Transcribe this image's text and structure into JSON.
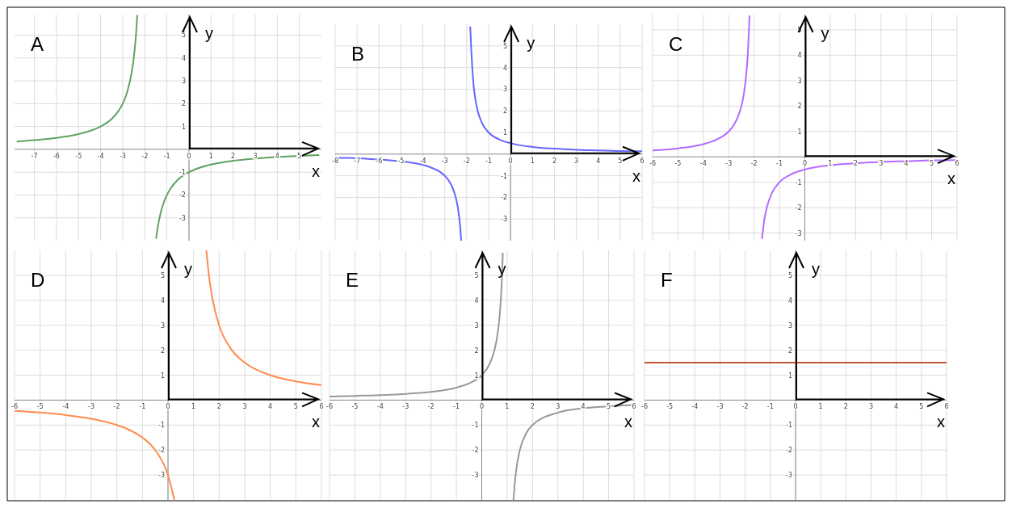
{
  "chart_data": [
    {
      "type": "line",
      "title": "A",
      "xlabel": "x",
      "ylabel": "y",
      "xlim": [
        -7.9,
        6
      ],
      "ylim": [
        -4,
        5.9
      ],
      "xticks": [
        -7,
        -6,
        -5,
        -4,
        -3,
        -2,
        -1,
        0,
        1,
        2,
        3,
        4,
        5
      ],
      "yticks": [
        -3,
        -2,
        -1,
        1,
        2,
        3,
        4,
        5
      ],
      "grid": true,
      "series": [
        {
          "color": "#5fa35f",
          "x": [
            -7.8,
            -7,
            -6,
            -5,
            -4.5,
            -4,
            -3.5,
            -3.2,
            -3,
            -2.8,
            -2.6,
            -2.5,
            -2.4,
            -2.34,
            -2,
            -1.49,
            -1.4,
            -1.3,
            -1.2,
            -1,
            -0.8,
            -0.5,
            0,
            0.5,
            1,
            2,
            3,
            4,
            5,
            5.9
          ],
          "values": [
            0.34,
            0.4,
            0.5,
            0.67,
            0.8,
            1,
            1.33,
            1.67,
            2,
            2.5,
            3.33,
            4,
            5,
            5.88,
            null,
            -3.92,
            -3.33,
            -2.86,
            -2.5,
            -2,
            -1.67,
            -1.33,
            -1,
            -0.8,
            -0.67,
            -0.5,
            -0.4,
            -0.33,
            -0.29,
            -0.25
          ]
        }
      ]
    },
    {
      "type": "line",
      "title": "B",
      "xlabel": "x",
      "ylabel": "y",
      "xlim": [
        -8,
        6
      ],
      "ylim": [
        -4,
        6
      ],
      "xticks": [
        -8,
        -7,
        -6,
        -5,
        -4,
        -3,
        -2,
        -1,
        0,
        1,
        2,
        3,
        4,
        5,
        6
      ],
      "yticks": [
        -3,
        -2,
        -1,
        1,
        2,
        3,
        4,
        5
      ],
      "grid": true,
      "series": [
        {
          "color": "#6666ff",
          "x": [
            -7.9,
            -7.5,
            -6.5,
            -5.5,
            -4.5,
            -3.8,
            -3,
            -2.7,
            -2.5,
            -2.4,
            -2.3,
            -2.25,
            -2,
            -1.84,
            -1.8,
            -1.7,
            -1.6,
            -1.5,
            -1.3,
            -1,
            -0.5,
            0,
            1,
            2,
            3,
            4,
            5,
            6
          ],
          "values": [
            -0.17,
            -0.18,
            -0.22,
            -0.29,
            -0.4,
            -0.56,
            -1,
            -1.43,
            -2,
            -2.5,
            -3.33,
            -4,
            null,
            5.9,
            5,
            3.33,
            2.5,
            2,
            1.43,
            1,
            0.67,
            0.5,
            0.33,
            0.25,
            0.2,
            0.17,
            0.14,
            0.13
          ]
        }
      ]
    },
    {
      "type": "line",
      "title": "C",
      "xlabel": "x",
      "ylabel": "y",
      "xlim": [
        -6,
        6
      ],
      "ylim": [
        -3.3,
        5.6
      ],
      "xticks": [
        -6,
        -5,
        -4,
        -3,
        -2,
        -1,
        0,
        1,
        2,
        3,
        4,
        5,
        6
      ],
      "yticks": [
        -3,
        -2,
        -1,
        1,
        2,
        3,
        4,
        5
      ],
      "grid": true,
      "series": [
        {
          "color": "#b36bff",
          "x": [
            -6,
            -5,
            -4,
            -3.5,
            -3,
            -2.8,
            -2.6,
            -2.5,
            -2.4,
            -2.3,
            -2.25,
            -2.18,
            -2,
            -1.69,
            -1.6,
            -1.5,
            -1.3,
            -1,
            -0.5,
            0,
            1,
            2,
            3,
            4,
            5,
            6
          ],
          "values": [
            0.25,
            0.33,
            0.5,
            0.67,
            1,
            1.25,
            1.67,
            2,
            2.5,
            3.33,
            4,
            5.56,
            null,
            -3.23,
            -2.5,
            -2,
            -1.43,
            -1,
            -0.67,
            -0.5,
            -0.33,
            -0.25,
            -0.2,
            -0.17,
            -0.14,
            -0.13
          ]
        }
      ]
    },
    {
      "type": "line",
      "title": "D",
      "xlabel": "x",
      "ylabel": "y",
      "xlim": [
        -6,
        6
      ],
      "ylim": [
        -4,
        6
      ],
      "xticks": [
        -6,
        -5,
        -4,
        -3,
        -2,
        -1,
        0,
        1,
        2,
        3,
        4,
        5,
        6
      ],
      "yticks": [
        -3,
        -2,
        -1,
        1,
        2,
        3,
        4,
        5
      ],
      "grid": true,
      "series": [
        {
          "color": "#ff8c50",
          "x": [
            -6,
            -5,
            -4,
            -3,
            -2,
            -1.5,
            -1,
            -0.5,
            0,
            0.25,
            1,
            1.5,
            1.6,
            1.75,
            2,
            2.5,
            3,
            4,
            5,
            6
          ],
          "values": [
            -0.43,
            -0.5,
            -0.6,
            -0.75,
            -1,
            -1.2,
            -1.5,
            -2,
            -3,
            -4,
            null,
            6,
            5,
            4,
            3,
            2,
            1.5,
            1,
            0.75,
            0.6
          ]
        }
      ]
    },
    {
      "type": "line",
      "title": "E",
      "xlabel": "x",
      "ylabel": "y",
      "xlim": [
        -6,
        6
      ],
      "ylim": [
        -4,
        6
      ],
      "xticks": [
        -6,
        -5,
        -4,
        -3,
        -2,
        -1,
        0,
        1,
        2,
        3,
        4,
        5,
        6
      ],
      "yticks": [
        -3,
        -2,
        -1,
        1,
        2,
        3,
        4,
        5
      ],
      "grid": true,
      "series": [
        {
          "color": "#999999",
          "x": [
            -6,
            -5,
            -4,
            -3,
            -2,
            -1,
            -0.5,
            0,
            0.3,
            0.5,
            0.6,
            0.7,
            0.75,
            0.8,
            0.83,
            1,
            1.25,
            1.3,
            1.4,
            1.5,
            1.75,
            2,
            3,
            4,
            5,
            6
          ],
          "values": [
            0.14,
            0.17,
            0.2,
            0.25,
            0.33,
            0.5,
            0.67,
            1,
            1.43,
            2,
            2.5,
            3.33,
            4,
            5,
            5.9,
            null,
            -4,
            -3.33,
            -2.5,
            -2,
            -1.33,
            -1,
            -0.5,
            -0.33,
            -0.25,
            -0.2
          ]
        }
      ]
    },
    {
      "type": "line",
      "title": "F",
      "xlabel": "x",
      "ylabel": "y",
      "xlim": [
        -6,
        6
      ],
      "ylim": [
        -4,
        6
      ],
      "xticks": [
        -6,
        -5,
        -4,
        -3,
        -2,
        -1,
        0,
        1,
        2,
        3,
        4,
        5,
        6
      ],
      "yticks": [
        -3,
        -2,
        -1,
        1,
        2,
        3,
        4,
        5
      ],
      "grid": true,
      "series": [
        {
          "color": "#c0562e",
          "x": [
            -6,
            6
          ],
          "values": [
            1.5,
            1.5
          ]
        }
      ]
    }
  ]
}
